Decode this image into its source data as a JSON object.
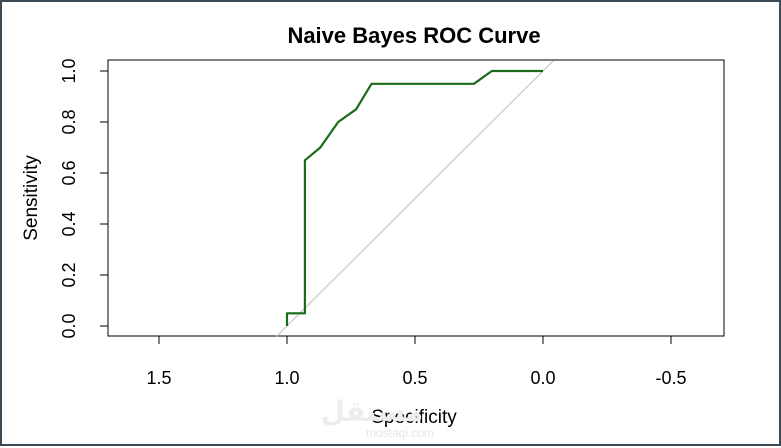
{
  "chart_data": {
    "type": "line",
    "title": "Naive Bayes ROC Curve",
    "xlabel": "Specificity",
    "ylabel": "Sensitivity",
    "x_reversed": true,
    "xlim": [
      1.75,
      -0.7
    ],
    "ylim": [
      0.0,
      1.0
    ],
    "x_ticks": [
      1.5,
      1.0,
      0.5,
      0.0,
      -0.5
    ],
    "x_tick_labels": [
      "1.5",
      "1.0",
      "0.5",
      "0.0",
      "-0.5"
    ],
    "y_ticks": [
      0.0,
      0.2,
      0.4,
      0.6,
      0.8,
      1.0
    ],
    "y_tick_labels": [
      "0.0",
      "0.2",
      "0.4",
      "0.6",
      "0.8",
      "1.0"
    ],
    "grid": false,
    "curve_color": "#1a6b1a",
    "reference_color": "#c8c8c8",
    "reference_line": {
      "x": [
        1.0,
        0.0
      ],
      "y": [
        0.0,
        1.0
      ]
    },
    "series": [
      {
        "x": [
          1.0,
          1.0,
          0.93,
          0.93,
          0.87,
          0.8,
          0.73,
          0.67,
          0.27,
          0.2,
          0.0
        ],
        "y": [
          0.0,
          0.05,
          0.05,
          0.65,
          0.7,
          0.8,
          0.85,
          0.95,
          0.95,
          1.0,
          1.0
        ]
      }
    ]
  },
  "watermark": {
    "main": "مستقل",
    "sub": "mostaqi.com"
  }
}
